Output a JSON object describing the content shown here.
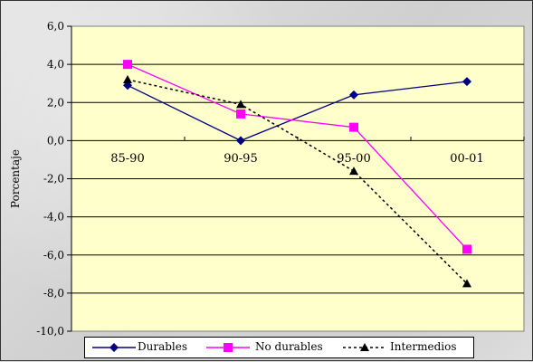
{
  "chart_data": {
    "type": "line",
    "categories": [
      "85-90",
      "90-95",
      "95-00",
      "00-01"
    ],
    "ylabel": "Porcentaje",
    "ylim": [
      -10,
      6
    ],
    "yticks": [
      6,
      4,
      2,
      0,
      -2,
      -4,
      -6,
      -8,
      -10
    ],
    "ytick_labels": [
      "6,0",
      "4,0",
      "2,0",
      "0,0",
      "-2,0",
      "-4,0",
      "-6,0",
      "-8,0",
      "-10,0"
    ],
    "grid": true,
    "legend": "bottom",
    "series": [
      {
        "name": "Durables",
        "values": [
          2.9,
          0.0,
          2.4,
          3.1
        ],
        "color": "#000080",
        "marker": "diamond",
        "dash": "solid"
      },
      {
        "name": "No durables",
        "values": [
          4.0,
          1.4,
          0.7,
          -5.7
        ],
        "color": "#ff00ff",
        "marker": "square",
        "dash": "solid"
      },
      {
        "name": "Intermedios",
        "values": [
          3.2,
          1.9,
          -1.6,
          -7.5
        ],
        "color": "#000000",
        "marker": "triangle",
        "dash": "dashed"
      }
    ]
  },
  "colors": {
    "plot_background": "#ffffcc"
  }
}
